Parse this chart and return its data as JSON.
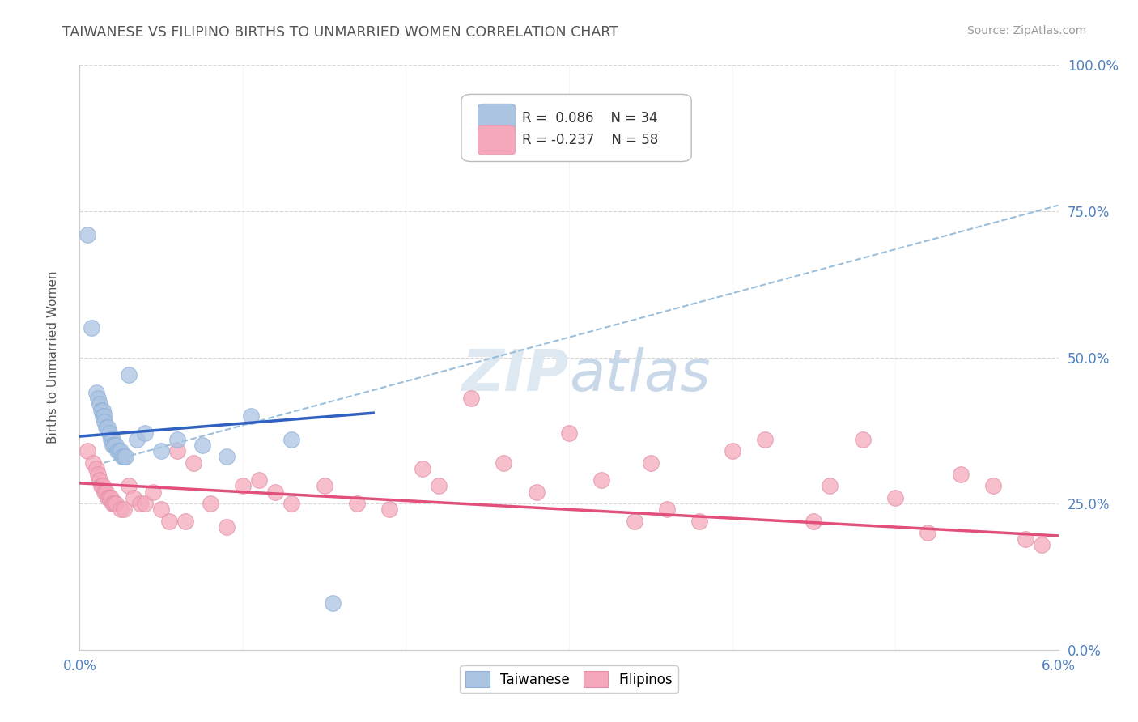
{
  "title": "TAIWANESE VS FILIPINO BIRTHS TO UNMARRIED WOMEN CORRELATION CHART",
  "source": "Source: ZipAtlas.com",
  "ylabel": "Births to Unmarried Women",
  "xlim": [
    0.0,
    6.0
  ],
  "ylim": [
    0.0,
    100.0
  ],
  "y_ticks": [
    0,
    25,
    50,
    75,
    100
  ],
  "y_tick_labels_right": [
    "0.0%",
    "25.0%",
    "50.0%",
    "75.0%",
    "100.0%"
  ],
  "taiwanese_R": 0.086,
  "taiwanese_N": 34,
  "filipino_R": -0.237,
  "filipino_N": 58,
  "taiwanese_color": "#aac4e2",
  "filipino_color": "#f5a8bc",
  "taiwanese_line_color": "#3060c0",
  "filipino_line_color": "#e0507a",
  "dashed_line_color": "#90b8d8",
  "background_color": "#ffffff",
  "title_color": "#555555",
  "source_color": "#999999",
  "title_fontsize": 12.5,
  "tw_line_x0": 0.0,
  "tw_line_x1": 1.8,
  "tw_line_y0": 36.5,
  "tw_line_y1": 40.5,
  "fi_line_x0": 0.0,
  "fi_line_x1": 6.0,
  "fi_line_y0": 28.5,
  "fi_line_y1": 19.5,
  "dash_line_x0": 0.15,
  "dash_line_x1": 6.0,
  "dash_line_y0": 32.0,
  "dash_line_y1": 76.0,
  "taiwanese_x": [
    0.05,
    0.07,
    0.1,
    0.11,
    0.12,
    0.13,
    0.14,
    0.14,
    0.15,
    0.15,
    0.16,
    0.17,
    0.18,
    0.19,
    0.2,
    0.2,
    0.21,
    0.22,
    0.23,
    0.24,
    0.25,
    0.26,
    0.27,
    0.28,
    0.3,
    0.35,
    0.4,
    0.5,
    0.6,
    0.75,
    0.9,
    1.05,
    1.3,
    1.55
  ],
  "taiwanese_y": [
    71,
    55,
    44,
    43,
    42,
    41,
    41,
    40,
    40,
    39,
    38,
    38,
    37,
    36,
    36,
    35,
    35,
    35,
    34,
    34,
    34,
    33,
    33,
    33,
    47,
    36,
    37,
    34,
    36,
    35,
    33,
    40,
    36,
    8
  ],
  "filipino_x": [
    0.05,
    0.08,
    0.1,
    0.11,
    0.12,
    0.13,
    0.14,
    0.15,
    0.16,
    0.17,
    0.18,
    0.19,
    0.2,
    0.21,
    0.22,
    0.25,
    0.27,
    0.3,
    0.33,
    0.37,
    0.4,
    0.45,
    0.5,
    0.55,
    0.6,
    0.65,
    0.7,
    0.8,
    0.9,
    1.0,
    1.1,
    1.2,
    1.3,
    1.5,
    1.7,
    1.9,
    2.1,
    2.2,
    2.4,
    2.6,
    2.8,
    3.0,
    3.2,
    3.4,
    3.5,
    3.6,
    3.8,
    4.0,
    4.2,
    4.5,
    4.6,
    4.8,
    5.0,
    5.2,
    5.4,
    5.6,
    5.8,
    5.9
  ],
  "filipino_y": [
    34,
    32,
    31,
    30,
    29,
    28,
    28,
    27,
    27,
    26,
    26,
    26,
    25,
    25,
    25,
    24,
    24,
    28,
    26,
    25,
    25,
    27,
    24,
    22,
    34,
    22,
    32,
    25,
    21,
    28,
    29,
    27,
    25,
    28,
    25,
    24,
    31,
    28,
    43,
    32,
    27,
    37,
    29,
    22,
    32,
    24,
    22,
    34,
    36,
    22,
    28,
    36,
    26,
    20,
    30,
    28,
    19,
    18
  ]
}
